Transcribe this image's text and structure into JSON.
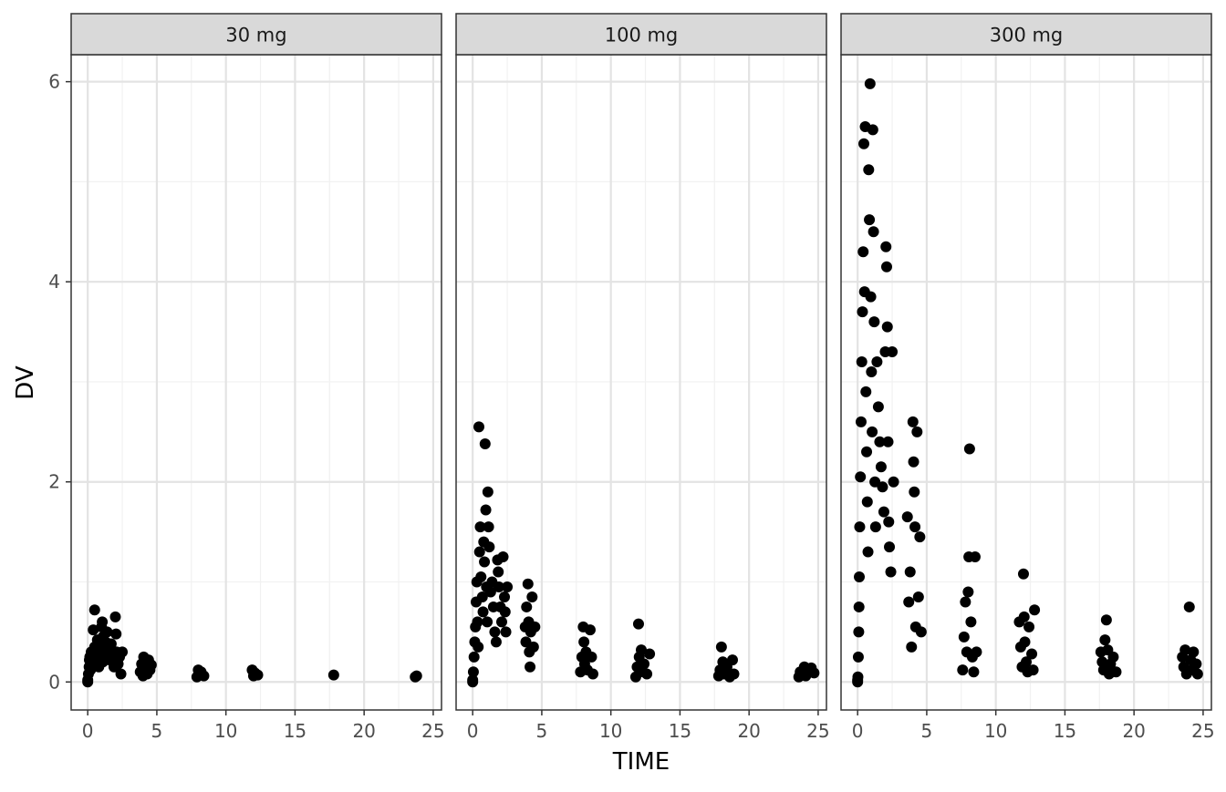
{
  "chart_data": {
    "type": "scatter",
    "facet_variable": "dose",
    "xlabel": "TIME",
    "ylabel": "DV",
    "xlim": [
      -1.2,
      25.6
    ],
    "ylim": [
      -0.28,
      6.27
    ],
    "x_ticks": [
      0,
      5,
      10,
      15,
      20,
      25
    ],
    "y_ticks": [
      0,
      2,
      4,
      6
    ],
    "grid": true,
    "point_color": "#000000",
    "panel_strip_color": "#d9d9d9",
    "facets": [
      {
        "label": "30 mg",
        "points": [
          [
            0,
            0
          ],
          [
            0,
            0.02
          ],
          [
            0.05,
            0.08
          ],
          [
            0.1,
            0.15
          ],
          [
            0.12,
            0.22
          ],
          [
            0.15,
            0.25
          ],
          [
            0.2,
            0.12
          ],
          [
            0.25,
            0.3
          ],
          [
            0.3,
            0.18
          ],
          [
            0.35,
            0.28
          ],
          [
            0.4,
            0.52
          ],
          [
            0.5,
            0.72
          ],
          [
            0.5,
            0.35
          ],
          [
            0.55,
            0.2
          ],
          [
            0.6,
            0.3
          ],
          [
            0.7,
            0.42
          ],
          [
            0.75,
            0.25
          ],
          [
            0.8,
            0.15
          ],
          [
            0.9,
            0.38
          ],
          [
            1.0,
            0.55
          ],
          [
            1.0,
            0.3
          ],
          [
            1.05,
            0.6
          ],
          [
            1.1,
            0.45
          ],
          [
            1.1,
            0.2
          ],
          [
            1.2,
            0.35
          ],
          [
            1.25,
            0.28
          ],
          [
            1.3,
            0.4
          ],
          [
            1.4,
            0.5
          ],
          [
            1.5,
            0.32
          ],
          [
            1.6,
            0.22
          ],
          [
            1.7,
            0.38
          ],
          [
            1.8,
            0.27
          ],
          [
            1.9,
            0.15
          ],
          [
            2.0,
            0.65
          ],
          [
            2.05,
            0.48
          ],
          [
            2.1,
            0.3
          ],
          [
            2.2,
            0.18
          ],
          [
            2.3,
            0.25
          ],
          [
            2.4,
            0.08
          ],
          [
            2.5,
            0.3
          ],
          [
            3.8,
            0.1
          ],
          [
            3.9,
            0.18
          ],
          [
            4.0,
            0.06
          ],
          [
            4.05,
            0.25
          ],
          [
            4.1,
            0.14
          ],
          [
            4.2,
            0.2
          ],
          [
            4.3,
            0.08
          ],
          [
            4.4,
            0.22
          ],
          [
            4.5,
            0.12
          ],
          [
            4.6,
            0.17
          ],
          [
            7.9,
            0.05
          ],
          [
            8.0,
            0.12
          ],
          [
            8.05,
            0.08
          ],
          [
            8.2,
            0.1
          ],
          [
            8.4,
            0.06
          ],
          [
            11.9,
            0.12
          ],
          [
            12.0,
            0.06
          ],
          [
            12.1,
            0.09
          ],
          [
            12.3,
            0.07
          ],
          [
            17.8,
            0.07
          ],
          [
            23.7,
            0.05
          ],
          [
            23.8,
            0.06
          ]
        ]
      },
      {
        "label": "100 mg",
        "points": [
          [
            0,
            0
          ],
          [
            0,
            0.02
          ],
          [
            0.05,
            0.1
          ],
          [
            0.1,
            0.25
          ],
          [
            0.15,
            0.4
          ],
          [
            0.2,
            0.55
          ],
          [
            0.25,
            0.8
          ],
          [
            0.3,
            1.0
          ],
          [
            0.35,
            0.6
          ],
          [
            0.4,
            0.35
          ],
          [
            0.45,
            2.55
          ],
          [
            0.5,
            1.3
          ],
          [
            0.55,
            1.55
          ],
          [
            0.6,
            1.05
          ],
          [
            0.7,
            0.85
          ],
          [
            0.75,
            0.7
          ],
          [
            0.8,
            1.4
          ],
          [
            0.85,
            1.2
          ],
          [
            0.9,
            2.38
          ],
          [
            0.95,
            1.72
          ],
          [
            1.0,
            0.95
          ],
          [
            1.05,
            0.6
          ],
          [
            1.1,
            1.9
          ],
          [
            1.15,
            1.55
          ],
          [
            1.2,
            1.35
          ],
          [
            1.3,
            0.9
          ],
          [
            1.4,
            1.0
          ],
          [
            1.5,
            0.75
          ],
          [
            1.6,
            0.5
          ],
          [
            1.7,
            0.4
          ],
          [
            1.8,
            1.22
          ],
          [
            1.85,
            1.1
          ],
          [
            1.9,
            0.95
          ],
          [
            2.0,
            0.75
          ],
          [
            2.1,
            0.6
          ],
          [
            2.2,
            1.25
          ],
          [
            2.3,
            0.85
          ],
          [
            2.35,
            0.7
          ],
          [
            2.4,
            0.5
          ],
          [
            2.5,
            0.95
          ],
          [
            3.8,
            0.55
          ],
          [
            3.85,
            0.4
          ],
          [
            3.9,
            0.75
          ],
          [
            4.0,
            0.98
          ],
          [
            4.05,
            0.6
          ],
          [
            4.1,
            0.3
          ],
          [
            4.15,
            0.15
          ],
          [
            4.2,
            0.5
          ],
          [
            4.3,
            0.85
          ],
          [
            4.4,
            0.35
          ],
          [
            4.5,
            0.55
          ],
          [
            7.8,
            0.1
          ],
          [
            7.9,
            0.25
          ],
          [
            8.0,
            0.55
          ],
          [
            8.05,
            0.4
          ],
          [
            8.1,
            0.18
          ],
          [
            8.2,
            0.3
          ],
          [
            8.3,
            0.12
          ],
          [
            8.5,
            0.52
          ],
          [
            8.6,
            0.25
          ],
          [
            8.7,
            0.08
          ],
          [
            11.8,
            0.05
          ],
          [
            11.9,
            0.15
          ],
          [
            12.0,
            0.58
          ],
          [
            12.05,
            0.25
          ],
          [
            12.1,
            0.1
          ],
          [
            12.2,
            0.32
          ],
          [
            12.4,
            0.18
          ],
          [
            12.6,
            0.08
          ],
          [
            12.8,
            0.28
          ],
          [
            17.8,
            0.06
          ],
          [
            17.9,
            0.12
          ],
          [
            18.0,
            0.35
          ],
          [
            18.1,
            0.2
          ],
          [
            18.2,
            0.08
          ],
          [
            18.4,
            0.15
          ],
          [
            18.6,
            0.05
          ],
          [
            18.8,
            0.22
          ],
          [
            18.9,
            0.08
          ],
          [
            23.6,
            0.05
          ],
          [
            23.7,
            0.1
          ],
          [
            23.8,
            0.08
          ],
          [
            24.0,
            0.15
          ],
          [
            24.1,
            0.06
          ],
          [
            24.3,
            0.12
          ],
          [
            24.5,
            0.14
          ],
          [
            24.7,
            0.09
          ]
        ]
      },
      {
        "label": "300 mg",
        "points": [
          [
            0,
            0
          ],
          [
            0,
            0.02
          ],
          [
            0.02,
            0.05
          ],
          [
            0.05,
            0.25
          ],
          [
            0.08,
            0.5
          ],
          [
            0.1,
            0.75
          ],
          [
            0.12,
            1.05
          ],
          [
            0.15,
            1.55
          ],
          [
            0.2,
            2.05
          ],
          [
            0.25,
            2.6
          ],
          [
            0.3,
            3.2
          ],
          [
            0.35,
            3.7
          ],
          [
            0.4,
            4.3
          ],
          [
            0.45,
            5.38
          ],
          [
            0.5,
            3.9
          ],
          [
            0.55,
            5.55
          ],
          [
            0.6,
            2.9
          ],
          [
            0.65,
            2.3
          ],
          [
            0.7,
            1.8
          ],
          [
            0.75,
            1.3
          ],
          [
            0.8,
            5.12
          ],
          [
            0.85,
            4.62
          ],
          [
            0.9,
            5.98
          ],
          [
            0.95,
            3.85
          ],
          [
            1.0,
            3.1
          ],
          [
            1.05,
            2.5
          ],
          [
            1.1,
            5.52
          ],
          [
            1.15,
            4.5
          ],
          [
            1.2,
            3.6
          ],
          [
            1.25,
            2.0
          ],
          [
            1.3,
            1.55
          ],
          [
            1.4,
            3.2
          ],
          [
            1.5,
            2.75
          ],
          [
            1.6,
            2.4
          ],
          [
            1.7,
            2.15
          ],
          [
            1.8,
            1.95
          ],
          [
            1.9,
            1.7
          ],
          [
            2.0,
            3.3
          ],
          [
            2.05,
            4.35
          ],
          [
            2.1,
            4.15
          ],
          [
            2.15,
            3.55
          ],
          [
            2.2,
            2.4
          ],
          [
            2.25,
            1.6
          ],
          [
            2.3,
            1.35
          ],
          [
            2.4,
            1.1
          ],
          [
            2.5,
            3.3
          ],
          [
            2.6,
            2.0
          ],
          [
            3.6,
            1.65
          ],
          [
            3.7,
            0.8
          ],
          [
            3.8,
            1.1
          ],
          [
            3.9,
            0.35
          ],
          [
            4.0,
            2.6
          ],
          [
            4.05,
            2.2
          ],
          [
            4.1,
            1.9
          ],
          [
            4.15,
            1.55
          ],
          [
            4.2,
            0.55
          ],
          [
            4.3,
            2.5
          ],
          [
            4.4,
            0.85
          ],
          [
            4.5,
            1.45
          ],
          [
            4.6,
            0.5
          ],
          [
            7.6,
            0.12
          ],
          [
            7.7,
            0.45
          ],
          [
            7.8,
            0.8
          ],
          [
            7.9,
            0.3
          ],
          [
            8.0,
            0.9
          ],
          [
            8.05,
            1.25
          ],
          [
            8.1,
            2.33
          ],
          [
            8.2,
            0.6
          ],
          [
            8.3,
            0.25
          ],
          [
            8.4,
            0.1
          ],
          [
            8.5,
            1.25
          ],
          [
            8.6,
            0.3
          ],
          [
            11.7,
            0.6
          ],
          [
            11.8,
            0.35
          ],
          [
            11.9,
            0.15
          ],
          [
            12.0,
            1.08
          ],
          [
            12.05,
            0.65
          ],
          [
            12.1,
            0.4
          ],
          [
            12.2,
            0.2
          ],
          [
            12.3,
            0.1
          ],
          [
            12.4,
            0.55
          ],
          [
            12.6,
            0.28
          ],
          [
            12.7,
            0.12
          ],
          [
            12.8,
            0.72
          ],
          [
            17.6,
            0.3
          ],
          [
            17.7,
            0.2
          ],
          [
            17.8,
            0.12
          ],
          [
            17.9,
            0.42
          ],
          [
            18.0,
            0.62
          ],
          [
            18.1,
            0.32
          ],
          [
            18.2,
            0.08
          ],
          [
            18.3,
            0.18
          ],
          [
            18.5,
            0.25
          ],
          [
            18.7,
            0.1
          ],
          [
            23.5,
            0.25
          ],
          [
            23.6,
            0.15
          ],
          [
            23.7,
            0.32
          ],
          [
            23.8,
            0.08
          ],
          [
            24.0,
            0.75
          ],
          [
            24.1,
            0.22
          ],
          [
            24.2,
            0.12
          ],
          [
            24.3,
            0.3
          ],
          [
            24.5,
            0.18
          ],
          [
            24.6,
            0.08
          ]
        ]
      }
    ]
  }
}
